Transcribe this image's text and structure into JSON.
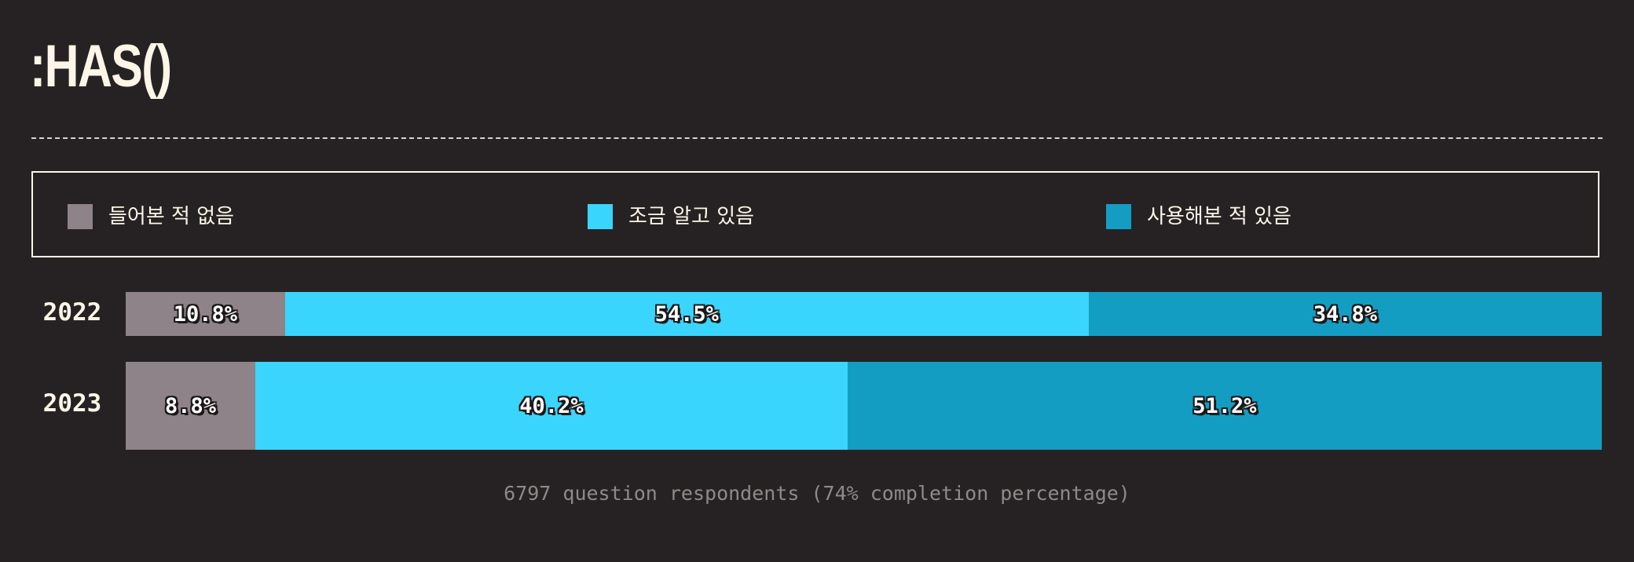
{
  "title": ":HAS()",
  "chart_data": {
    "type": "bar",
    "orientation": "horizontal",
    "stacked": true,
    "normalized": true,
    "categories": [
      "2022",
      "2023"
    ],
    "series": [
      {
        "name": "들어본 적 없음",
        "color": "#8e8388",
        "values": [
          10.8,
          8.8
        ]
      },
      {
        "name": "조금 알고 있음",
        "color": "#3ad5fd",
        "values": [
          54.5,
          40.2
        ]
      },
      {
        "name": "사용해본 적 있음",
        "color": "#149dc3",
        "values": [
          34.8,
          51.2
        ]
      }
    ],
    "value_labels": [
      [
        "10.8%",
        "54.5%",
        "34.8%"
      ],
      [
        "8.8%",
        "40.2%",
        "51.2%"
      ]
    ],
    "legend_position": "top",
    "grid": false
  },
  "footnote": "6797 question respondents (74% completion percentage)"
}
